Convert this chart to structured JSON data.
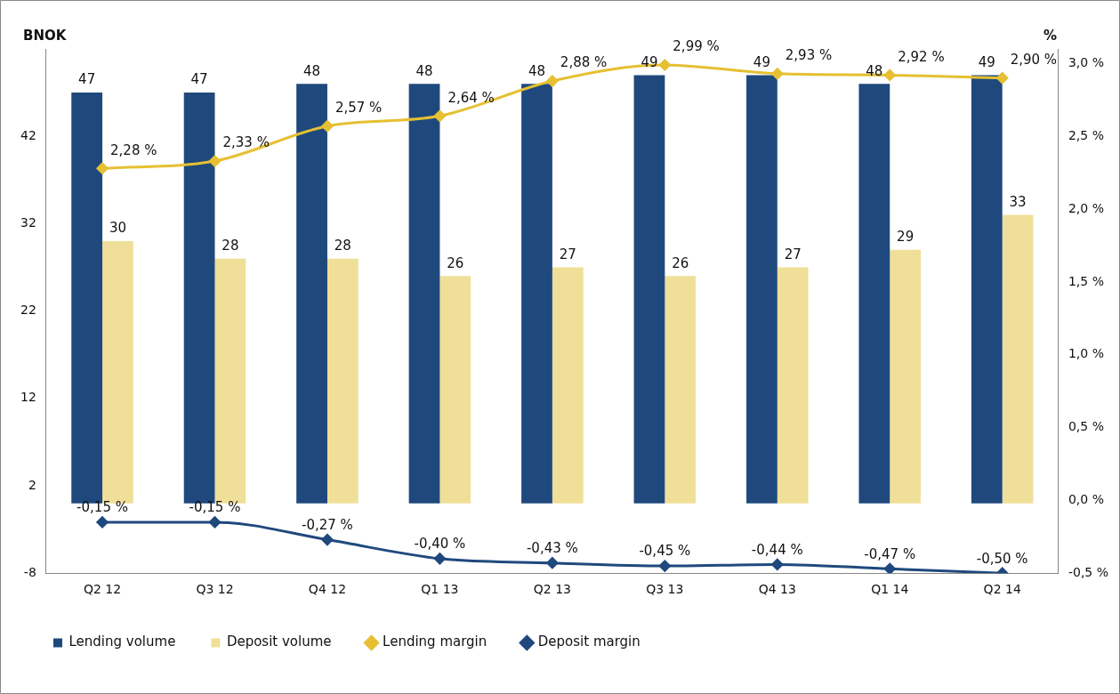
{
  "chart_data": {
    "type": "bar",
    "ylabel": "BNOK",
    "y2label": "%",
    "categories": [
      "Q2 12",
      "Q3 12",
      "Q4 12",
      "Q1 13",
      "Q2 13",
      "Q3 13",
      "Q4 13",
      "Q1 14",
      "Q2 14"
    ],
    "series": [
      {
        "name": "Lending volume",
        "color": "#1f497d",
        "values": [
          47,
          47,
          48,
          48,
          48,
          49,
          49,
          48,
          49
        ],
        "value_labels": [
          "47",
          "47",
          "48",
          "48",
          "48",
          "49",
          "49",
          "48",
          "49"
        ]
      },
      {
        "name": "Deposit volume",
        "color": "#f0df98",
        "values": [
          30,
          28,
          28,
          26,
          27,
          26,
          27,
          29,
          33
        ],
        "value_labels": [
          "30",
          "28",
          "28",
          "26",
          "27",
          "26",
          "27",
          "29",
          "33"
        ]
      },
      {
        "name": "Lending margin",
        "type": "line",
        "axis": "y2",
        "color": "#e6c032",
        "values": [
          2.28,
          2.33,
          2.57,
          2.64,
          2.88,
          2.99,
          2.93,
          2.92,
          2.9
        ],
        "value_labels": [
          "2,28 %",
          "2,33 %",
          "2,57 %",
          "2,64 %",
          "2,88 %",
          "2,99 %",
          "2,93 %",
          "2,92 %",
          "2,90 %"
        ]
      },
      {
        "name": "Deposit margin",
        "type": "line",
        "axis": "y2",
        "color": "#1f497d",
        "values": [
          -0.15,
          -0.15,
          -0.27,
          -0.4,
          -0.43,
          -0.45,
          -0.44,
          -0.47,
          -0.5
        ],
        "value_labels": [
          "-0,15 %",
          "-0,15 %",
          "-0,27 %",
          "-0,40 %",
          "-0,43 %",
          "-0,45 %",
          "-0,44 %",
          "-0,47 %",
          "-0,50 %"
        ]
      }
    ],
    "ylim": [
      -8,
      52
    ],
    "yticks": [
      -8,
      2,
      12,
      22,
      32,
      42
    ],
    "y2lim": [
      -0.5,
      3.1
    ],
    "y2ticks": [
      {
        "value": -0.5,
        "label": "-0,5 %"
      },
      {
        "value": 0,
        "label": "0,0 %"
      },
      {
        "value": 0.5,
        "label": "0,5 %"
      },
      {
        "value": 1,
        "label": "1,0 %"
      },
      {
        "value": 1.5,
        "label": "1,5 %"
      },
      {
        "value": 2,
        "label": "2,0 %"
      },
      {
        "value": 2.5,
        "label": "2,5 %"
      },
      {
        "value": 3,
        "label": "3,0 %"
      }
    ],
    "grid": false,
    "legend": "bottom",
    "marker": "diamond"
  }
}
